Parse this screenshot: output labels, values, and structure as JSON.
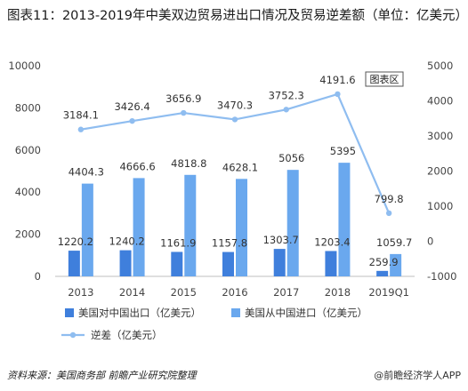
{
  "title": "图表11：2013-2019年中美双边贸易进出口情况及贸易逆差额（单位：亿美元）",
  "source": "资料来源：美国商务部 前瞻产业研究院整理",
  "brand": "@前瞻经济学人APP",
  "chart_data": {
    "type": "bar",
    "categories": [
      "2013",
      "2014",
      "2015",
      "2016",
      "2017",
      "2018",
      "2019Q1"
    ],
    "left_axis": {
      "min": 0,
      "max": 10000,
      "ticks": [
        0,
        2000,
        4000,
        6000,
        8000,
        10000
      ]
    },
    "right_axis": {
      "min": -1000,
      "max": 5000,
      "ticks": [
        -1000,
        0,
        1000,
        2000,
        3000,
        4000,
        5000
      ]
    },
    "series": [
      {
        "name": "美国对中国出口（亿美元）",
        "type": "bar",
        "axis": "left",
        "color": "#3f7fdc",
        "values": [
          1220.2,
          1240.2,
          1161.9,
          1157.8,
          1303.7,
          1203.4,
          259.9
        ]
      },
      {
        "name": "美国从中国进口（亿美元）",
        "type": "bar",
        "axis": "left",
        "color": "#6aa8ee",
        "values": [
          4404.3,
          4666.6,
          4818.8,
          4628.1,
          5056,
          5395,
          1059.7
        ]
      },
      {
        "name": "逆差（亿美元）",
        "type": "line",
        "axis": "right",
        "color": "#8fbdf0",
        "values": [
          3184.1,
          3426.4,
          3656.9,
          3470.3,
          3752.3,
          4191.6,
          799.8
        ]
      }
    ],
    "data_labels": {
      "export": [
        "1220.2",
        "1240.2",
        "1161.9",
        "1157.8",
        "1303.7",
        "1203.4",
        "259.9"
      ],
      "import": [
        "4404.3",
        "4666.6",
        "4818.8",
        "4628.1",
        "5056",
        "5395",
        "1059.7"
      ],
      "deficit": [
        "3184.1",
        "3426.4",
        "3656.9",
        "3470.3",
        "3752.3",
        "4191.6",
        "799.8"
      ]
    },
    "badge": "图表区",
    "grid": false,
    "legend_position": "bottom"
  }
}
